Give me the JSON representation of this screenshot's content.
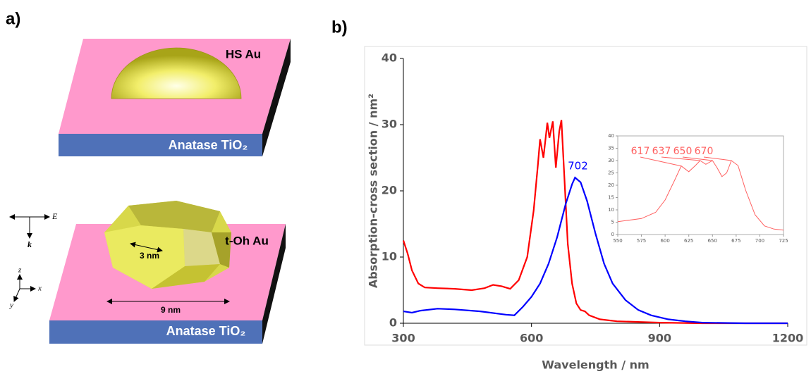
{
  "panel_labels": [
    "a)",
    "b)"
  ],
  "diagram": {
    "top": {
      "particle": "HS Au",
      "substrate": "Anatase TiO₂"
    },
    "bottom": {
      "particle": "t-Oh Au",
      "substrate": "Anatase TiO₂",
      "small_dim": "3 nm",
      "large_dim": "9 nm"
    },
    "field": {
      "e": "E",
      "k": "k"
    },
    "axes": {
      "z": "z",
      "x": "x",
      "y": "y"
    }
  },
  "chart_data": [
    {
      "type": "line",
      "x_label": "Wavelength  / nm",
      "y_label": "Absorption-cross section / nm²",
      "xlim": [
        300,
        1200
      ],
      "ylim": [
        0,
        40
      ],
      "xticks": [
        300,
        600,
        900,
        1200
      ],
      "yticks": [
        0,
        10,
        20,
        30,
        40
      ],
      "series": [
        {
          "color": "#ff0000",
          "x": [
            300,
            310,
            320,
            335,
            350,
            380,
            420,
            460,
            490,
            510,
            530,
            550,
            570,
            590,
            605,
            615,
            620,
            628,
            637,
            642,
            650,
            657,
            665,
            670,
            677,
            685,
            695,
            705,
            715,
            725,
            735,
            760,
            800,
            900,
            1000,
            1200
          ],
          "values": [
            12.5,
            10.5,
            8,
            6,
            5.4,
            5.3,
            5.2,
            5.0,
            5.3,
            5.8,
            5.6,
            5.2,
            6.5,
            10,
            17,
            24,
            27.8,
            25,
            30.3,
            28,
            30.5,
            23.5,
            29,
            30.7,
            22,
            12,
            6,
            3,
            2,
            1.8,
            1.2,
            0.6,
            0.3,
            0.1,
            0,
            0
          ]
        },
        {
          "color": "#0000ff",
          "x": [
            300,
            320,
            340,
            380,
            420,
            480,
            540,
            560,
            580,
            600,
            620,
            640,
            660,
            680,
            695,
            702,
            715,
            730,
            750,
            770,
            790,
            820,
            850,
            880,
            920,
            960,
            1000,
            1100,
            1200
          ],
          "values": [
            1.8,
            1.6,
            1.9,
            2.2,
            2.1,
            1.8,
            1.3,
            1.2,
            2.5,
            4,
            6,
            9,
            13,
            18,
            21,
            22,
            21.3,
            18.5,
            13.5,
            9,
            6,
            3.5,
            2,
            1.2,
            0.6,
            0.3,
            0.1,
            0,
            0
          ]
        }
      ],
      "peak_labels": [
        702
      ]
    },
    {
      "type": "line",
      "xlim": [
        550,
        725
      ],
      "ylim": [
        0,
        40
      ],
      "xticks": [
        550,
        575,
        600,
        625,
        650,
        675,
        700,
        725
      ],
      "yticks": [
        0,
        5,
        10,
        15,
        20,
        25,
        30,
        35,
        40
      ],
      "series": [
        {
          "color": "#ff6060",
          "x": [
            550,
            575,
            590,
            600,
            610,
            617,
            625,
            632,
            637,
            643,
            650,
            655,
            660,
            665,
            670,
            677,
            685,
            695,
            705,
            715,
            725
          ],
          "values": [
            5.2,
            6.5,
            9,
            14,
            22,
            27.8,
            25.5,
            28,
            30,
            28.5,
            30,
            27,
            23.5,
            25,
            30,
            28,
            18,
            8,
            3.5,
            2.2,
            1.8
          ]
        }
      ],
      "peak_labels": [
        617,
        637,
        650,
        670
      ]
    }
  ]
}
